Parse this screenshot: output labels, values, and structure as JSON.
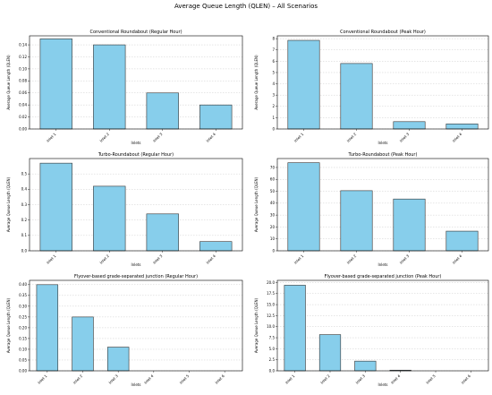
{
  "figure_title": "Average Queue Length (QLEN) – All Scenarios",
  "bar_color": "#87CEEB",
  "edge_color": "#333333",
  "chart_data": [
    {
      "type": "bar",
      "title": "Conventional Roundabout (Regular Hour)",
      "categories": [
        "Inlet 1",
        "Inlet 2",
        "Inlet 3",
        "Inlet 4"
      ],
      "values": [
        0.15,
        0.14,
        0.06,
        0.04
      ],
      "xlabel": "Inlets",
      "ylabel": "Average Queue Length (QLEN)",
      "ylim": [
        0,
        0.155
      ],
      "yticks": [
        0.0,
        0.02,
        0.04,
        0.06,
        0.08,
        0.1,
        0.12,
        0.14
      ],
      "ytick_labels": [
        "0.00",
        "0.02",
        "0.04",
        "0.06",
        "0.08",
        "0.10",
        "0.12",
        "0.14"
      ],
      "grid": "y"
    },
    {
      "type": "bar",
      "title": "Conventional Roundabout (Peak Hour)",
      "categories": [
        "Inlet 1",
        "Inlet 2",
        "Inlet 3",
        "Inlet 4"
      ],
      "values": [
        7.85,
        5.8,
        0.65,
        0.45
      ],
      "xlabel": "Inlets",
      "ylabel": "Average Queue Length (QLEN)",
      "ylim": [
        0,
        8.25
      ],
      "yticks": [
        0,
        1,
        2,
        3,
        4,
        5,
        6,
        7,
        8
      ],
      "ytick_labels": [
        "0",
        "1",
        "2",
        "3",
        "4",
        "5",
        "6",
        "7",
        "8"
      ],
      "grid": "y"
    },
    {
      "type": "bar",
      "title": "Turbo-Roundabout (Regular Hour)",
      "categories": [
        "Inlet 1",
        "Inlet 2",
        "Inlet 3",
        "Inlet 4"
      ],
      "values": [
        0.57,
        0.42,
        0.24,
        0.06
      ],
      "xlabel": "Inlets",
      "ylabel": "Average Queue Length (QLEN)",
      "ylim": [
        0,
        0.6
      ],
      "yticks": [
        0.0,
        0.1,
        0.2,
        0.3,
        0.4,
        0.5
      ],
      "ytick_labels": [
        "0.0",
        "0.1",
        "0.2",
        "0.3",
        "0.4",
        "0.5"
      ],
      "grid": "y"
    },
    {
      "type": "bar",
      "title": "Turbo-Roundabout (Peak Hour)",
      "categories": [
        "Inlet 1",
        "Inlet 2",
        "Inlet 3",
        "Inlet 4"
      ],
      "values": [
        74,
        50.5,
        43.5,
        16.5
      ],
      "xlabel": "Inlets",
      "ylabel": "Average Queue Length (QLEN)",
      "ylim": [
        0,
        77.5
      ],
      "yticks": [
        0,
        10,
        20,
        30,
        40,
        50,
        60,
        70
      ],
      "ytick_labels": [
        "0",
        "10",
        "20",
        "30",
        "40",
        "50",
        "60",
        "70"
      ],
      "grid": "y"
    },
    {
      "type": "bar",
      "title": "Flyover-based grade-separated junction (Regular Hour)",
      "categories": [
        "Inlet 1",
        "Inlet 2",
        "Inlet 3",
        "Inlet 4",
        "Inlet 5",
        "Inlet 6"
      ],
      "values": [
        0.4,
        0.25,
        0.11,
        0.0,
        0.0,
        0.0
      ],
      "xlabel": "Inlets",
      "ylabel": "Average Queue Length (QLEN)",
      "ylim": [
        0,
        0.42
      ],
      "yticks": [
        0.0,
        0.05,
        0.1,
        0.15,
        0.2,
        0.25,
        0.3,
        0.35,
        0.4
      ],
      "ytick_labels": [
        "0.00",
        "0.05",
        "0.10",
        "0.15",
        "0.20",
        "0.25",
        "0.30",
        "0.35",
        "0.40"
      ],
      "grid": "y"
    },
    {
      "type": "bar",
      "title": "Flyover-based grade-separated junction (Peak Hour)",
      "categories": [
        "Inlet 1",
        "Inlet 2",
        "Inlet 3",
        "Inlet 4",
        "Inlet 5",
        "Inlet 6"
      ],
      "values": [
        19.4,
        8.2,
        2.2,
        0.15,
        0.0,
        0.0
      ],
      "xlabel": "Inlets",
      "ylabel": "Average Queue Length (QLEN)",
      "ylim": [
        0,
        20.5
      ],
      "yticks": [
        0.0,
        2.5,
        5.0,
        7.5,
        10.0,
        12.5,
        15.0,
        17.5,
        20.0
      ],
      "ytick_labels": [
        "0.0",
        "2.5",
        "5.0",
        "7.5",
        "10.0",
        "12.5",
        "15.0",
        "17.5",
        "20.0"
      ],
      "grid": "y"
    }
  ]
}
